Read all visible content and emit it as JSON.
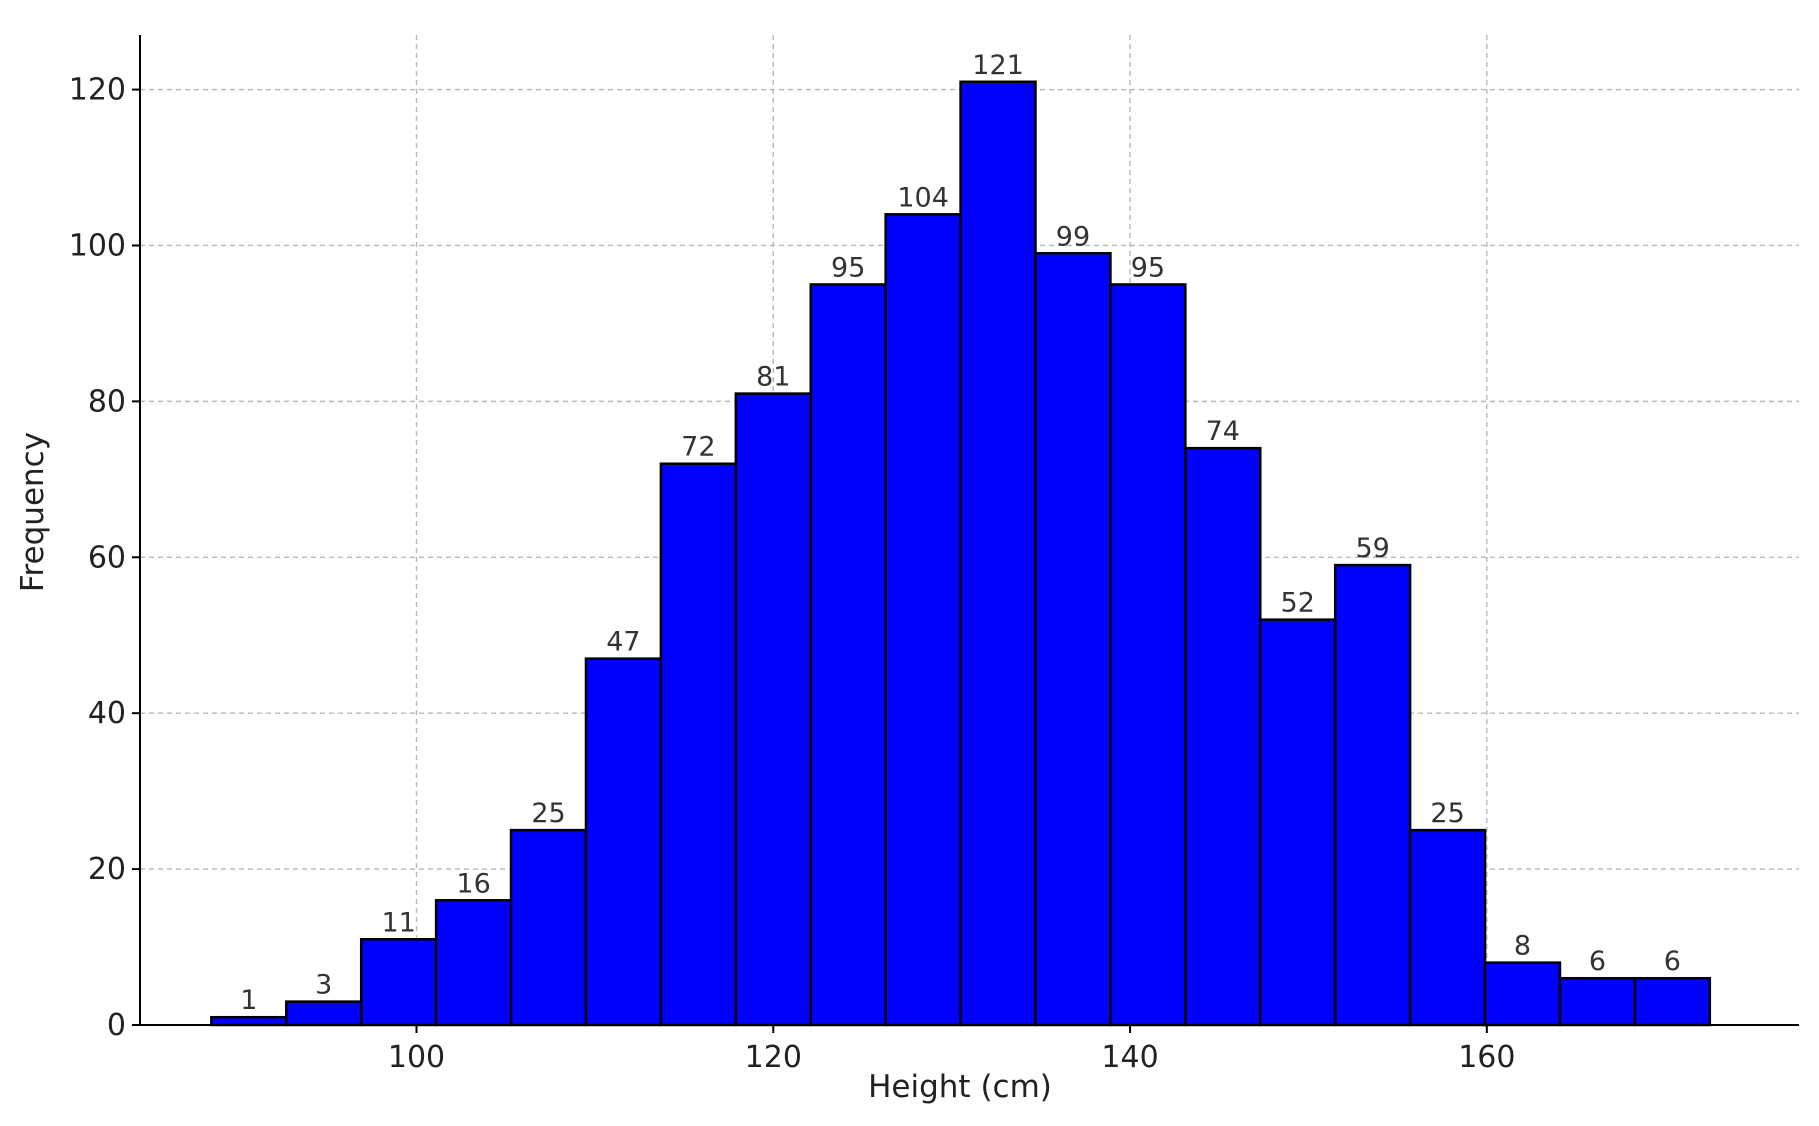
{
  "chart_data": {
    "type": "bar",
    "title": "",
    "xlabel": "Height (cm)",
    "ylabel": "Frequency",
    "bin_edges": [
      88.5,
      92.7,
      96.9,
      101.1,
      105.3,
      109.5,
      113.7,
      117.9,
      122.1,
      126.3,
      130.5,
      134.7,
      138.9,
      143.1,
      147.3,
      151.5,
      155.7,
      159.9,
      164.1,
      168.3,
      172.5
    ],
    "values": [
      1,
      3,
      11,
      16,
      25,
      47,
      72,
      81,
      95,
      104,
      121,
      99,
      95,
      74,
      52,
      59,
      25,
      8,
      6,
      6
    ],
    "bar_labels": [
      "1",
      "3",
      "11",
      "16",
      "25",
      "47",
      "72",
      "81",
      "95",
      "104",
      "121",
      "99",
      "95",
      "74",
      "52",
      "59",
      "25",
      "8",
      "6",
      "6"
    ],
    "xlim": [
      84.5,
      177.5
    ],
    "ylim": [
      0,
      127
    ],
    "xticks": [
      100,
      120,
      140,
      160
    ],
    "xtick_labels": [
      "100",
      "120",
      "140",
      "160"
    ],
    "yticks": [
      0,
      20,
      40,
      60,
      80,
      100,
      120
    ],
    "ytick_labels": [
      "0",
      "20",
      "40",
      "60",
      "80",
      "100",
      "120"
    ],
    "grid": true,
    "bar_color": "#0000ff",
    "edge_color": "#000000"
  }
}
